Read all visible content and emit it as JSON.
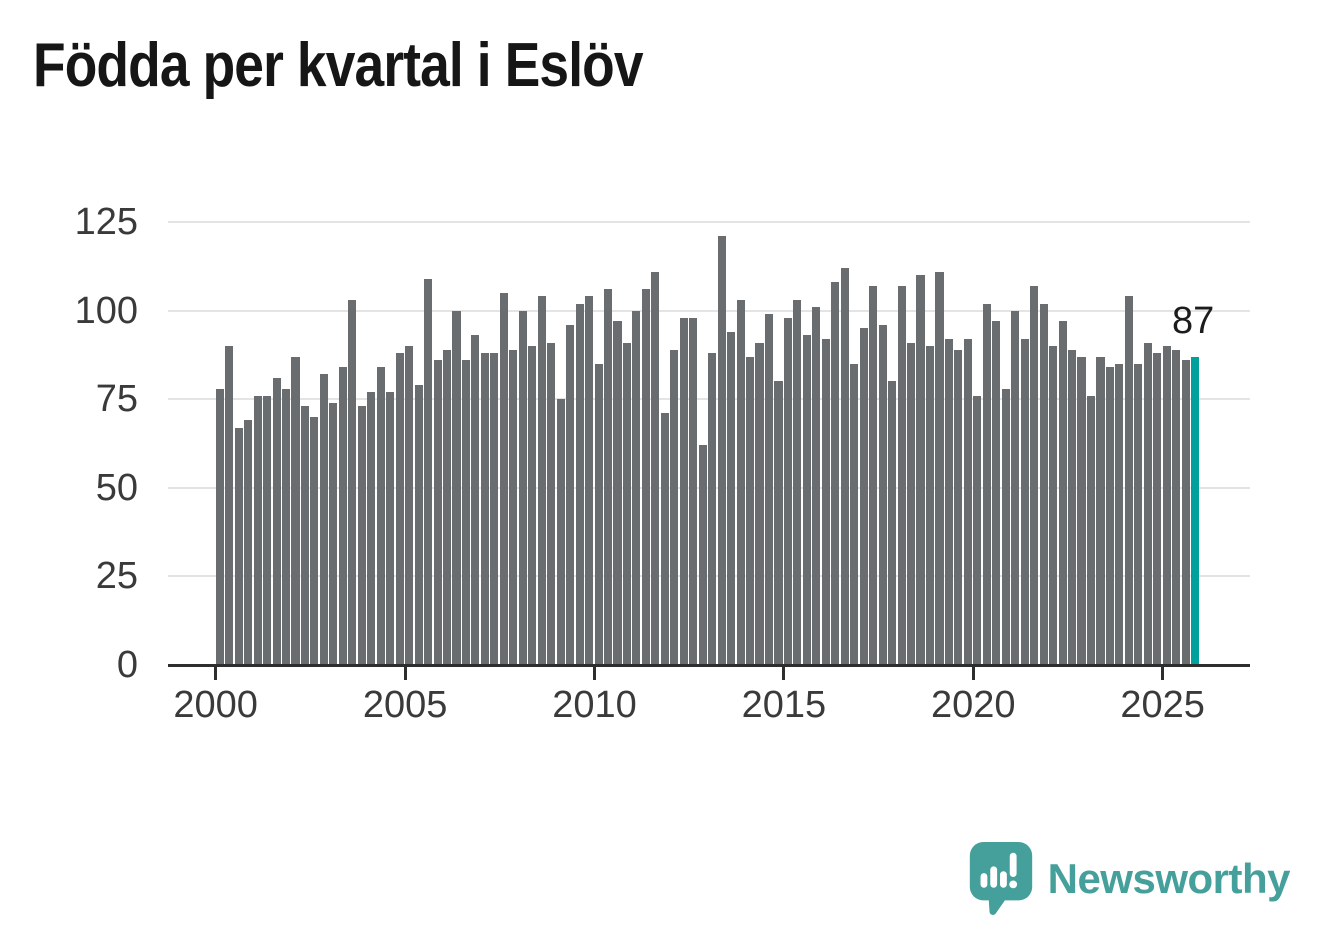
{
  "title": "Födda per kvartal i Eslöv",
  "chart_data": {
    "type": "bar",
    "title": "Födda per kvartal i Eslöv",
    "x_unit": "quarter",
    "x_start": "2000 Q1",
    "x_end": "2025 Q4",
    "categories_years": [
      2000,
      2001,
      2002,
      2003,
      2004,
      2005,
      2006,
      2007,
      2008,
      2009,
      2010,
      2011,
      2012,
      2013,
      2014,
      2015,
      2016,
      2017,
      2018,
      2019,
      2020,
      2021,
      2022,
      2023,
      2024,
      2025
    ],
    "values": [
      78,
      90,
      67,
      69,
      76,
      76,
      81,
      78,
      87,
      73,
      70,
      82,
      74,
      84,
      103,
      73,
      77,
      84,
      77,
      88,
      90,
      79,
      109,
      86,
      89,
      100,
      86,
      93,
      88,
      88,
      105,
      89,
      100,
      90,
      104,
      91,
      75,
      96,
      102,
      104,
      85,
      106,
      97,
      91,
      100,
      106,
      111,
      71,
      89,
      98,
      98,
      62,
      88,
      121,
      94,
      103,
      87,
      91,
      99,
      80,
      98,
      103,
      93,
      101,
      92,
      108,
      112,
      85,
      95,
      107,
      96,
      80,
      107,
      91,
      110,
      90,
      111,
      92,
      89,
      92,
      76,
      102,
      97,
      78,
      100,
      92,
      107,
      102,
      90,
      97,
      89,
      87,
      76,
      87,
      84,
      85,
      104,
      85,
      91,
      88,
      90,
      89,
      86,
      87
    ],
    "y_ticks": [
      0,
      25,
      50,
      75,
      100,
      125
    ],
    "x_tick_labels": [
      "2000",
      "2005",
      "2010",
      "2015",
      "2020",
      "2025"
    ],
    "ylim": [
      0,
      125
    ],
    "grid": true,
    "bar_color": "#6a6d70",
    "highlight": {
      "index": 103,
      "value": 87,
      "label": "87",
      "color": "#00a19d"
    }
  },
  "annotation": {
    "last_value_label": "87"
  },
  "branding": {
    "name": "Newsworthy",
    "color": "#45a09b",
    "icon": "newsworthy-chart-bubble-icon"
  }
}
